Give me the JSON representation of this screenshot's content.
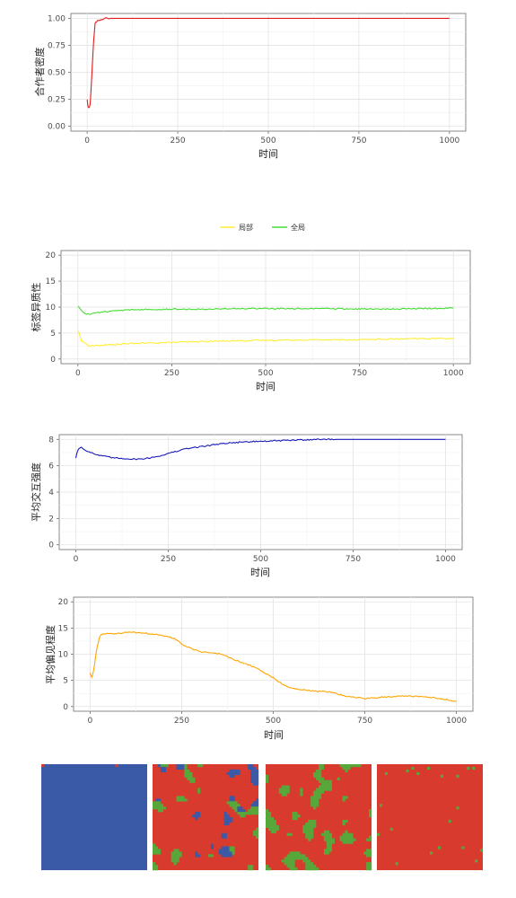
{
  "chart_data": [
    {
      "type": "line",
      "xlabel": "时间",
      "ylabel": "合作者密度",
      "xlim": [
        0,
        1000
      ],
      "ylim": [
        0,
        1
      ],
      "xticks": [
        0,
        250,
        500,
        750,
        1000
      ],
      "yticks": [
        0,
        0.25,
        0.5,
        0.75,
        1
      ],
      "ytick_labels": [
        "0.00",
        "0.25",
        "0.50",
        "0.75",
        "1.00"
      ],
      "grid": true,
      "series": [
        {
          "color": "#e41a1c",
          "x": [
            0,
            2,
            5,
            8,
            10,
            14,
            18,
            22,
            26,
            30,
            40,
            50,
            60,
            100,
            200,
            400,
            600,
            800,
            1000
          ],
          "y": [
            0.25,
            0.18,
            0.17,
            0.2,
            0.3,
            0.55,
            0.8,
            0.96,
            0.97,
            0.98,
            0.99,
            1.0,
            1.0,
            1.0,
            1.0,
            1.0,
            1.0,
            1.0,
            1.0
          ]
        }
      ]
    },
    {
      "type": "line",
      "xlabel": "时间",
      "ylabel": "标签异质性",
      "xlim": [
        0,
        1000
      ],
      "ylim": [
        0,
        20
      ],
      "xticks": [
        0,
        250,
        500,
        750,
        1000
      ],
      "yticks": [
        0,
        5,
        10,
        15,
        20
      ],
      "ytick_labels": [
        "0",
        "5",
        "10",
        "15",
        "20"
      ],
      "grid": true,
      "legend_position": "top",
      "series": [
        {
          "name": "局部",
          "color": "#ffee33",
          "x": [
            0,
            5,
            10,
            20,
            30,
            50,
            100,
            150,
            200,
            300,
            400,
            500,
            600,
            700,
            800,
            900,
            1000
          ],
          "y": [
            5.5,
            4.5,
            3.5,
            3.0,
            2.5,
            2.6,
            2.8,
            3.0,
            3.1,
            3.3,
            3.5,
            3.6,
            3.7,
            3.7,
            3.8,
            3.9,
            4.0
          ]
        },
        {
          "name": "全局",
          "color": "#44dd33",
          "x": [
            0,
            5,
            10,
            20,
            30,
            50,
            100,
            150,
            200,
            300,
            400,
            500,
            600,
            700,
            800,
            900,
            1000
          ],
          "y": [
            10.2,
            9.8,
            9.3,
            8.8,
            8.6,
            8.9,
            9.3,
            9.5,
            9.6,
            9.6,
            9.7,
            9.7,
            9.7,
            9.7,
            9.6,
            9.7,
            9.8
          ]
        }
      ]
    },
    {
      "type": "line",
      "xlabel": "时间",
      "ylabel": "平均交互强度",
      "xlim": [
        0,
        1000
      ],
      "ylim": [
        0,
        8
      ],
      "xticks": [
        0,
        250,
        500,
        750,
        1000
      ],
      "yticks": [
        0,
        2,
        4,
        6,
        8
      ],
      "ytick_labels": [
        "0",
        "2",
        "4",
        "6",
        "8"
      ],
      "grid": true,
      "series": [
        {
          "color": "#1a1ab8",
          "x": [
            0,
            3,
            8,
            15,
            25,
            40,
            60,
            80,
            100,
            130,
            160,
            190,
            220,
            260,
            300,
            350,
            400,
            450,
            500,
            550,
            600,
            650,
            700,
            800,
            900,
            1000
          ],
          "y": [
            6.6,
            7.0,
            7.3,
            7.4,
            7.2,
            7.0,
            6.8,
            6.7,
            6.6,
            6.55,
            6.5,
            6.55,
            6.7,
            7.0,
            7.3,
            7.5,
            7.7,
            7.8,
            7.85,
            7.9,
            7.95,
            8.0,
            8.0,
            8.0,
            8.0,
            8.0
          ]
        }
      ]
    },
    {
      "type": "line",
      "xlabel": "时间",
      "ylabel": "平均偏见程度",
      "xlim": [
        0,
        1000
      ],
      "ylim": [
        0,
        20
      ],
      "xticks": [
        0,
        250,
        500,
        750,
        1000
      ],
      "yticks": [
        0,
        5,
        10,
        15,
        20
      ],
      "ytick_labels": [
        "0",
        "5",
        "10",
        "15",
        "20"
      ],
      "grid": true,
      "series": [
        {
          "color": "#ffa500",
          "x": [
            0,
            5,
            10,
            15,
            20,
            25,
            30,
            50,
            80,
            110,
            150,
            200,
            230,
            260,
            300,
            340,
            360,
            400,
            450,
            500,
            520,
            550,
            600,
            650,
            700,
            750,
            800,
            850,
            900,
            950,
            1000
          ],
          "y": [
            6.5,
            5.5,
            7.0,
            9.5,
            11.5,
            13.0,
            13.8,
            13.9,
            14.0,
            14.2,
            14.0,
            13.6,
            13.0,
            11.5,
            10.5,
            10.2,
            10.0,
            8.8,
            7.5,
            5.5,
            4.5,
            3.5,
            3.0,
            2.8,
            2.0,
            1.5,
            1.8,
            2.0,
            1.9,
            1.6,
            1.0
          ]
        }
      ]
    },
    {
      "type": "heatmap",
      "palette": {
        "blue": "#3a5aa8",
        "red": "#d93a2e",
        "green": "#57a83b"
      },
      "panels": [
        {
          "dominant": "blue",
          "mix": {
            "blue": 0.78,
            "red": 0.15,
            "green": 0.07
          }
        },
        {
          "dominant": "red",
          "mix": {
            "blue": 0.25,
            "red": 0.5,
            "green": 0.25
          }
        },
        {
          "dominant": "red",
          "mix": {
            "blue": 0.0,
            "red": 0.6,
            "green": 0.4
          }
        },
        {
          "dominant": "red",
          "mix": {
            "blue": 0.0,
            "red": 0.99,
            "green": 0.01
          }
        }
      ]
    }
  ]
}
